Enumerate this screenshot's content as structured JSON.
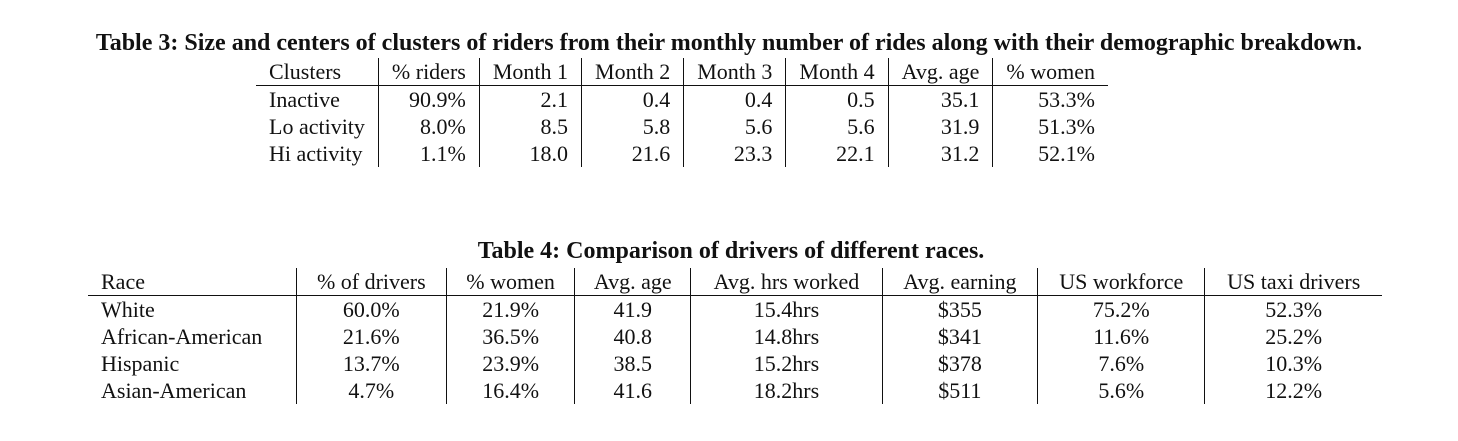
{
  "table3": {
    "caption": "Table 3: Size and centers of clusters of riders from their monthly number of rides along with their demographic breakdown.",
    "headers": [
      "Clusters",
      "% riders",
      "Month 1",
      "Month 2",
      "Month 3",
      "Month 4",
      "Avg. age",
      "% women"
    ],
    "rows": [
      [
        "Inactive",
        "90.9%",
        "2.1",
        "0.4",
        "0.4",
        "0.5",
        "35.1",
        "53.3%"
      ],
      [
        "Lo activity",
        "8.0%",
        "8.5",
        "5.8",
        "5.6",
        "5.6",
        "31.9",
        "51.3%"
      ],
      [
        "Hi activity",
        "1.1%",
        "18.0",
        "21.6",
        "23.3",
        "22.1",
        "31.2",
        "52.1%"
      ]
    ]
  },
  "table4": {
    "caption": "Table 4: Comparison of drivers of different races.",
    "headers": [
      "Race",
      "% of drivers",
      "% women",
      "Avg. age",
      "Avg. hrs worked",
      "Avg. earning",
      "US workforce",
      "US taxi drivers"
    ],
    "rows": [
      [
        "White",
        "60.0%",
        "21.9%",
        "41.9",
        "15.4hrs",
        "$355",
        "75.2%",
        "52.3%"
      ],
      [
        "African-American",
        "21.6%",
        "36.5%",
        "40.8",
        "14.8hrs",
        "$341",
        "11.6%",
        "25.2%"
      ],
      [
        "Hispanic",
        "13.7%",
        "23.9%",
        "38.5",
        "15.2hrs",
        "$378",
        "7.6%",
        "10.3%"
      ],
      [
        "Asian-American",
        "4.7%",
        "16.4%",
        "41.6",
        "18.2hrs",
        "$511",
        "5.6%",
        "12.2%"
      ]
    ]
  }
}
